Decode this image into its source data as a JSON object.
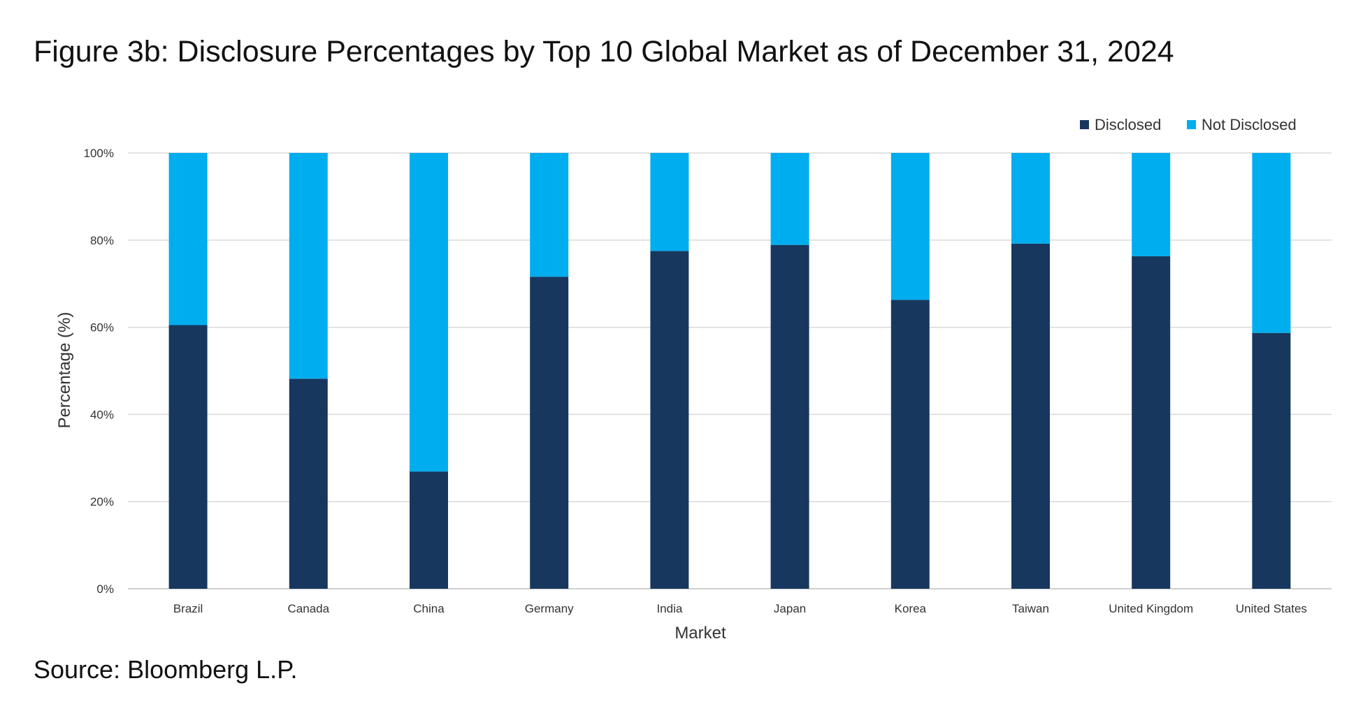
{
  "title": "Figure 3b: Disclosure Percentages by Top 10 Global Market as of December 31, 2024",
  "source": "Source: Bloomberg L.P.",
  "colors": {
    "disclosed": "#17375e",
    "not_disclosed": "#00adee",
    "gridline": "#d9d9d9",
    "axis": "#bfbfbf"
  },
  "chart_data": {
    "type": "bar",
    "stacked": true,
    "categories": [
      "Brazil",
      "Canada",
      "China",
      "Germany",
      "India",
      "Japan",
      "Korea",
      "Taiwan",
      "United Kingdom",
      "United States"
    ],
    "series": [
      {
        "name": "Disclosed",
        "values": [
          60.5,
          48.2,
          26.9,
          71.6,
          77.5,
          78.9,
          66.3,
          79.2,
          76.3,
          58.7
        ]
      },
      {
        "name": "Not Disclosed",
        "values": [
          39.5,
          51.8,
          73.1,
          28.4,
          22.5,
          21.1,
          33.7,
          20.8,
          23.7,
          41.3
        ]
      }
    ],
    "xlabel": "Market",
    "ylabel": "Percentage (%)",
    "ylim": [
      0,
      100
    ],
    "yticks": [
      "0%",
      "20%",
      "40%",
      "60%",
      "80%",
      "100%"
    ],
    "grid": true,
    "legend": "top-right"
  }
}
